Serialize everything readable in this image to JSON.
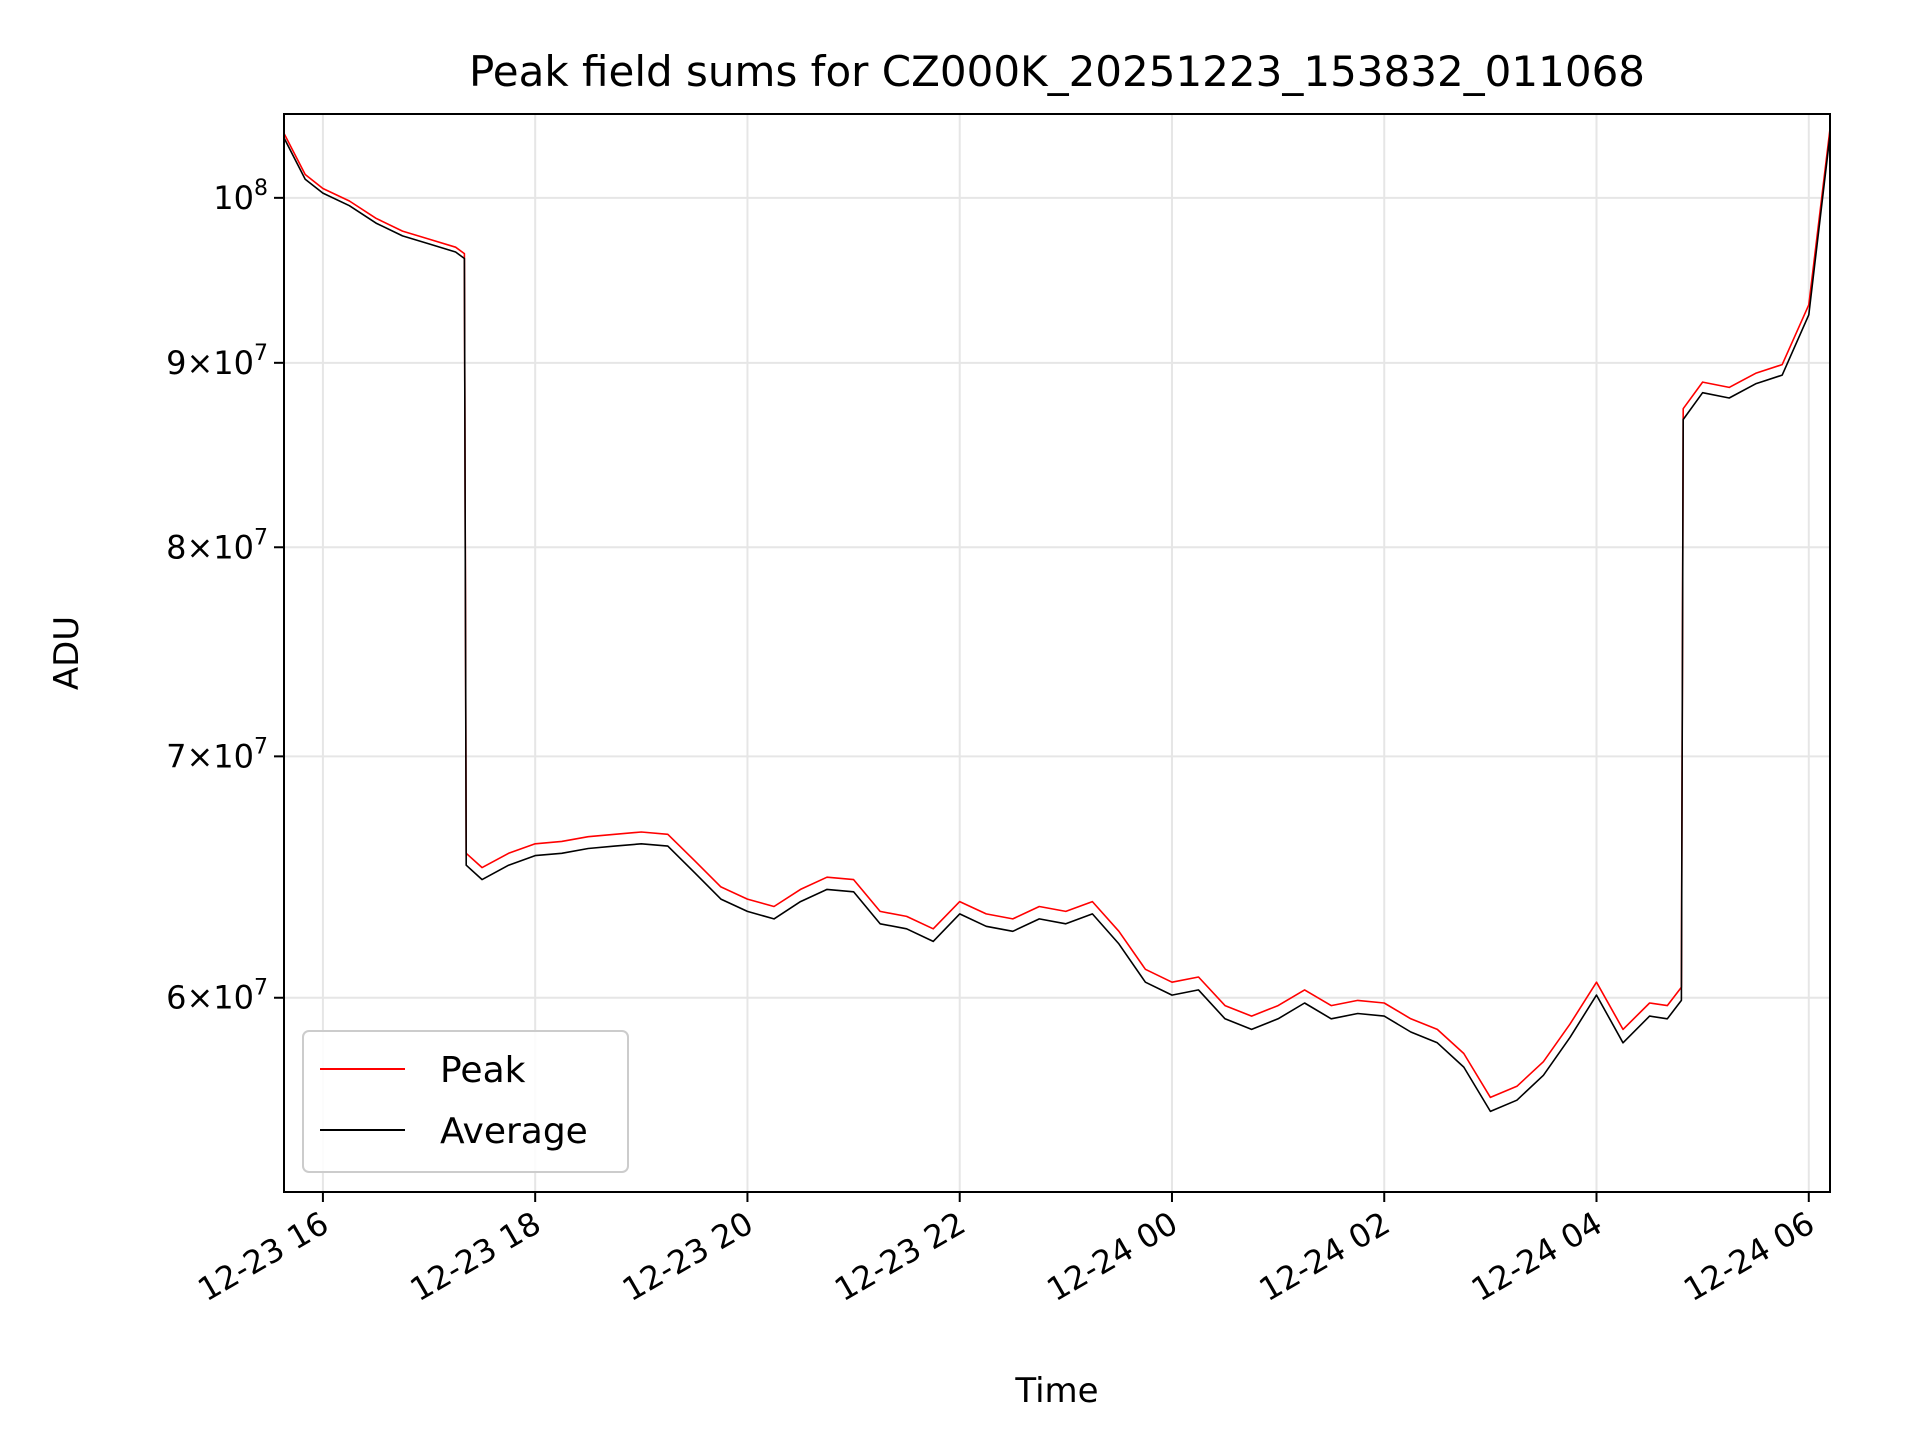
{
  "chart_data": {
    "type": "line",
    "title": "Peak field sums for CZ000K_20251223_153832_011068",
    "xlabel": "Time",
    "ylabel": "ADU",
    "y_scale": "log",
    "ylim": [
      53000000,
      105500000
    ],
    "xlim": [
      "12-23 15:38",
      "12-24 06:12"
    ],
    "grid": true,
    "legend_position": "lower-left",
    "x_ticks": [
      "12-23 16",
      "12-23 18",
      "12-23 20",
      "12-23 22",
      "12-24 00",
      "12-24 02",
      "12-24 04",
      "12-24 06"
    ],
    "y_ticks": [
      {
        "value": 60000000,
        "mantissa": "6",
        "exp": "7"
      },
      {
        "value": 70000000,
        "mantissa": "7",
        "exp": "7"
      },
      {
        "value": 80000000,
        "mantissa": "8",
        "exp": "7"
      },
      {
        "value": 90000000,
        "mantissa": "9",
        "exp": "7"
      },
      {
        "value": 100000000,
        "mantissa": "",
        "exp": "8"
      }
    ],
    "series": [
      {
        "name": "Peak",
        "color": "#ff0000",
        "x": [
          "12-23 15:38",
          "12-23 15:50",
          "12-23 16:00",
          "12-23 16:15",
          "12-23 16:30",
          "12-23 16:45",
          "12-23 17:00",
          "12-23 17:15",
          "12-23 17:20",
          "12-23 17:21",
          "12-23 17:30",
          "12-23 17:45",
          "12-23 18:00",
          "12-23 18:15",
          "12-23 18:30",
          "12-23 18:45",
          "12-23 19:00",
          "12-23 19:15",
          "12-23 19:30",
          "12-23 19:45",
          "12-23 20:00",
          "12-23 20:15",
          "12-23 20:30",
          "12-23 20:45",
          "12-23 21:00",
          "12-23 21:15",
          "12-23 21:30",
          "12-23 21:45",
          "12-23 22:00",
          "12-23 22:15",
          "12-23 22:30",
          "12-23 22:45",
          "12-23 23:00",
          "12-23 23:15",
          "12-23 23:30",
          "12-23 23:45",
          "12-24 00:00",
          "12-24 00:15",
          "12-24 00:30",
          "12-24 00:45",
          "12-24 01:00",
          "12-24 01:15",
          "12-24 01:30",
          "12-24 01:45",
          "12-24 02:00",
          "12-24 02:15",
          "12-24 02:30",
          "12-24 02:45",
          "12-24 03:00",
          "12-24 03:15",
          "12-24 03:30",
          "12-24 03:45",
          "12-24 04:00",
          "12-24 04:15",
          "12-24 04:30",
          "12-24 04:40",
          "12-24 04:48",
          "12-24 04:49",
          "12-24 05:00",
          "12-24 05:15",
          "12-24 05:30",
          "12-24 05:45",
          "12-24 06:00",
          "12-24 06:12"
        ],
        "values": [
          104200000,
          101500000,
          100600000,
          99800000,
          98700000,
          97900000,
          97400000,
          96900000,
          96500000,
          65800000,
          65200000,
          65800000,
          66200000,
          66300000,
          66500000,
          66600000,
          66700000,
          66600000,
          65500000,
          64400000,
          63900000,
          63600000,
          64300000,
          64800000,
          64700000,
          63400000,
          63200000,
          62700000,
          63800000,
          63300000,
          63100000,
          63600000,
          63400000,
          63800000,
          62600000,
          61100000,
          60600000,
          60800000,
          59700000,
          59300000,
          59700000,
          60300000,
          59700000,
          59900000,
          59800000,
          59200000,
          58800000,
          57900000,
          56300000,
          56700000,
          57600000,
          59000000,
          60600000,
          58800000,
          59800000,
          59700000,
          60400000,
          87400000,
          88900000,
          88600000,
          89400000,
          89900000,
          93400000,
          104500000
        ]
      },
      {
        "name": "Average",
        "color": "#000000",
        "x": [
          "12-23 15:38",
          "12-23 15:50",
          "12-23 16:00",
          "12-23 16:15",
          "12-23 16:30",
          "12-23 16:45",
          "12-23 17:00",
          "12-23 17:15",
          "12-23 17:20",
          "12-23 17:21",
          "12-23 17:30",
          "12-23 17:45",
          "12-23 18:00",
          "12-23 18:15",
          "12-23 18:30",
          "12-23 18:45",
          "12-23 19:00",
          "12-23 19:15",
          "12-23 19:30",
          "12-23 19:45",
          "12-23 20:00",
          "12-23 20:15",
          "12-23 20:30",
          "12-23 20:45",
          "12-23 21:00",
          "12-23 21:15",
          "12-23 21:30",
          "12-23 21:45",
          "12-23 22:00",
          "12-23 22:15",
          "12-23 22:30",
          "12-23 22:45",
          "12-23 23:00",
          "12-23 23:15",
          "12-23 23:30",
          "12-23 23:45",
          "12-24 00:00",
          "12-24 00:15",
          "12-24 00:30",
          "12-24 00:45",
          "12-24 01:00",
          "12-24 01:15",
          "12-24 01:30",
          "12-24 01:45",
          "12-24 02:00",
          "12-24 02:15",
          "12-24 02:30",
          "12-24 02:45",
          "12-24 03:00",
          "12-24 03:15",
          "12-24 03:30",
          "12-24 03:45",
          "12-24 04:00",
          "12-24 04:15",
          "12-24 04:30",
          "12-24 04:40",
          "12-24 04:48",
          "12-24 04:49",
          "12-24 05:00",
          "12-24 05:15",
          "12-24 05:30",
          "12-24 05:45",
          "12-24 06:00",
          "12-24 06:12"
        ],
        "values": [
          103900000,
          101200000,
          100300000,
          99500000,
          98400000,
          97600000,
          97100000,
          96600000,
          96200000,
          65300000,
          64700000,
          65300000,
          65700000,
          65800000,
          66000000,
          66100000,
          66200000,
          66100000,
          65000000,
          63900000,
          63400000,
          63100000,
          63800000,
          64300000,
          64200000,
          62900000,
          62700000,
          62200000,
          63300000,
          62800000,
          62600000,
          63100000,
          62900000,
          63300000,
          62100000,
          60600000,
          60100000,
          60300000,
          59200000,
          58800000,
          59200000,
          59800000,
          59200000,
          59400000,
          59300000,
          58700000,
          58300000,
          57400000,
          55800000,
          56200000,
          57100000,
          58500000,
          60100000,
          58300000,
          59300000,
          59200000,
          59900000,
          86800000,
          88300000,
          88000000,
          88800000,
          89300000,
          92800000,
          104100000
        ]
      }
    ]
  }
}
